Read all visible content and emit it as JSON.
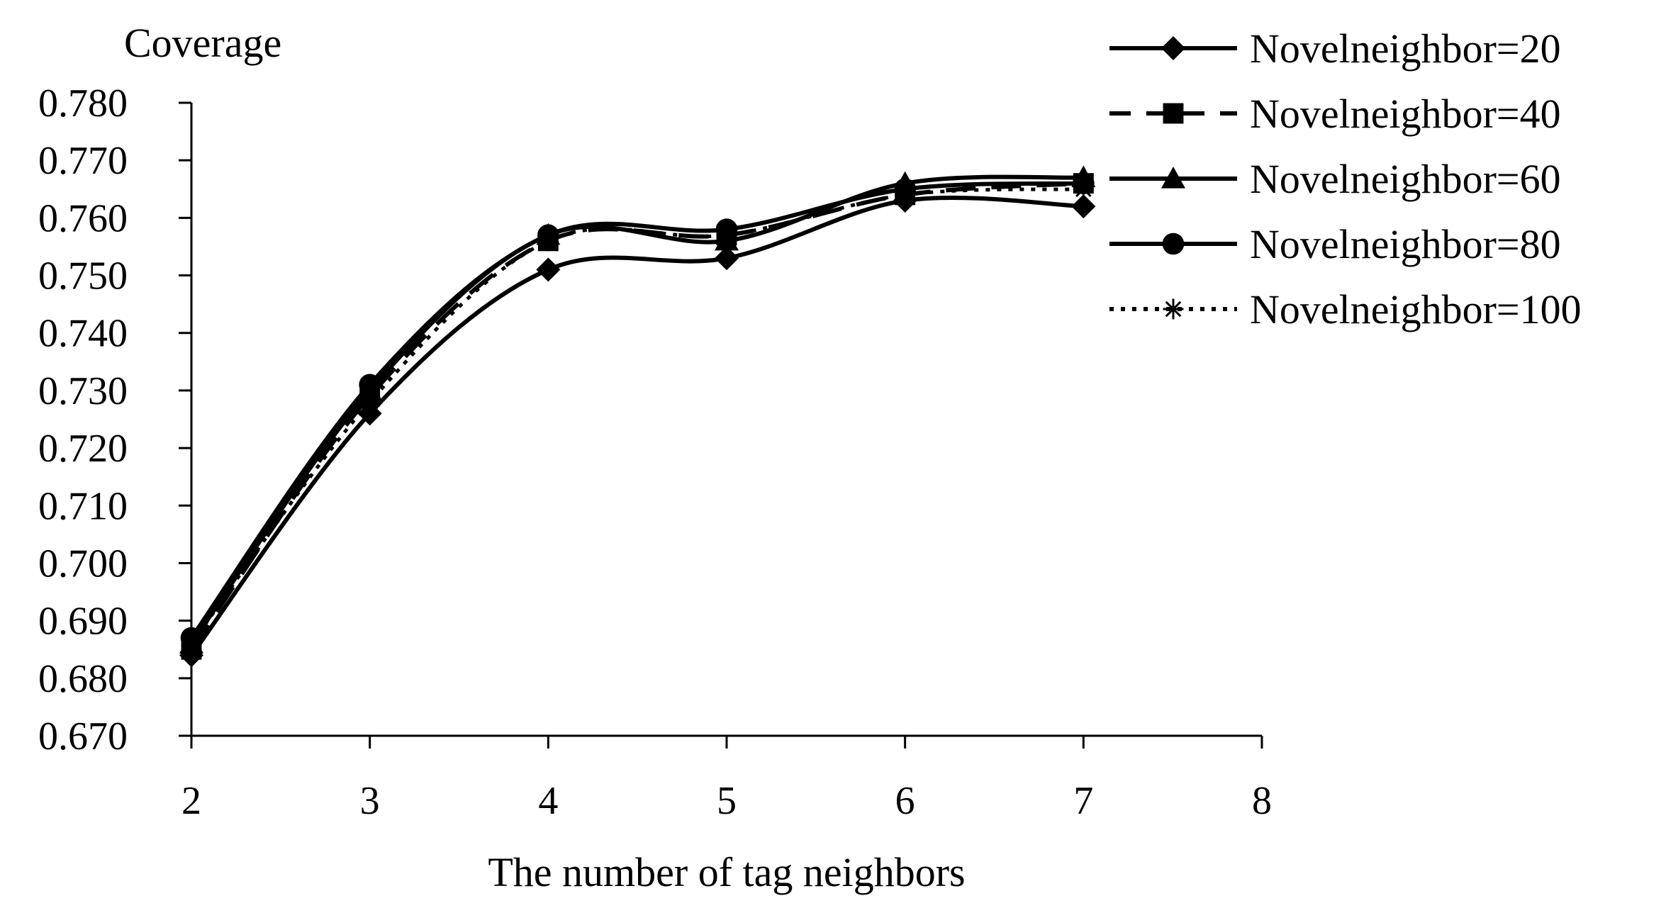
{
  "chart_data": {
    "type": "line",
    "title": "",
    "ylabel": "Coverage",
    "xlabel": "The number of tag neighbors",
    "xlim": [
      2,
      8
    ],
    "ylim": [
      0.67,
      0.78
    ],
    "x_ticks": [
      "2",
      "3",
      "4",
      "5",
      "6",
      "7",
      "8"
    ],
    "y_ticks": [
      "0.670",
      "0.680",
      "0.690",
      "0.700",
      "0.710",
      "0.720",
      "0.730",
      "0.740",
      "0.750",
      "0.760",
      "0.770",
      "0.780"
    ],
    "x": [
      2,
      3,
      4,
      5,
      6,
      7
    ],
    "grid": false,
    "legend_position": "top-right",
    "smoothed": true,
    "series": [
      {
        "name": "Novelneighbor=20",
        "marker": "diamond",
        "dash": "solid",
        "color": "#000000",
        "values": [
          0.684,
          0.726,
          0.751,
          0.753,
          0.763,
          0.762
        ]
      },
      {
        "name": "Novelneighbor=40",
        "marker": "square",
        "dash": "dashed",
        "color": "#000000",
        "values": [
          0.685,
          0.729,
          0.756,
          0.757,
          0.764,
          0.766
        ]
      },
      {
        "name": "Novelneighbor=60",
        "marker": "triangle",
        "dash": "solid",
        "color": "#000000",
        "values": [
          0.686,
          0.73,
          0.757,
          0.756,
          0.766,
          0.767
        ]
      },
      {
        "name": "Novelneighbor=80",
        "marker": "circle",
        "dash": "solid",
        "color": "#000000",
        "values": [
          0.687,
          0.731,
          0.757,
          0.758,
          0.765,
          0.766
        ]
      },
      {
        "name": "Novelneighbor=100",
        "marker": "asterisk",
        "dash": "dotted",
        "color": "#000000",
        "values": [
          0.686,
          0.728,
          0.756,
          0.757,
          0.764,
          0.765
        ]
      }
    ]
  }
}
